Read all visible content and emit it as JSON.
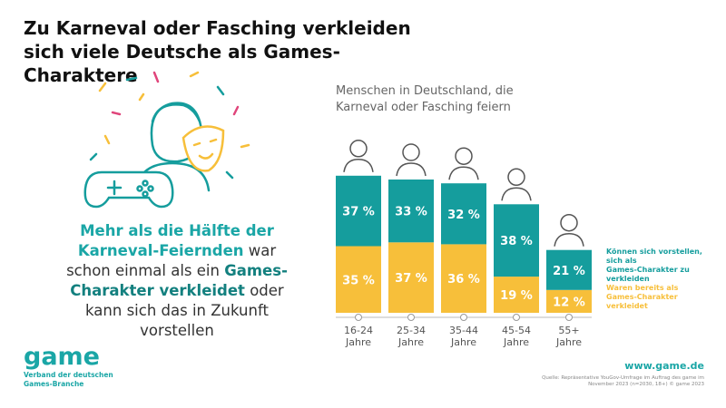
{
  "header": {
    "title": "Zu Karneval oder Fasching verkleiden sich viele Deutsche als Games-Charaktere"
  },
  "callout": {
    "parts": [
      "Mehr als die Hälfte der Karneval-Feiernden",
      "war schon einmal als ein",
      "Games-Charakter verkleidet",
      "oder kann sich das in Zukunft vorstellen"
    ]
  },
  "chart_data": {
    "type": "stacked_bar",
    "subtitle": "Menschen in Deutschland, die Karneval oder Fasching feiern",
    "categories": [
      "16-24 Jahre",
      "25-34 Jahre",
      "35-44 Jahre",
      "45-54 Jahre",
      "55+ Jahre"
    ],
    "series": [
      {
        "name": "Waren bereits als Games-Charakter verkleidet",
        "color": "#f7bf3a",
        "values": [
          35,
          37,
          36,
          19,
          12
        ],
        "value_labels": [
          "35 %",
          "37 %",
          "36 %",
          "19 %",
          "12 %"
        ]
      },
      {
        "name": "Können sich vorstellen, sich als Games-Charakter zu verkleiden",
        "color": "#159d9d",
        "values": [
          37,
          33,
          32,
          38,
          21
        ],
        "value_labels": [
          "37 %",
          "33 %",
          "32 %",
          "38 %",
          "21 %"
        ]
      }
    ]
  },
  "footer": {
    "logo": "game",
    "association": "Verband der deutschen Games-Branche",
    "website": "www.game.de",
    "source": "Quelle: Repräsentative YouGov-Umfrage im Auftrag des game im November 2023 (n=2030, 18+) © game 2023"
  }
}
